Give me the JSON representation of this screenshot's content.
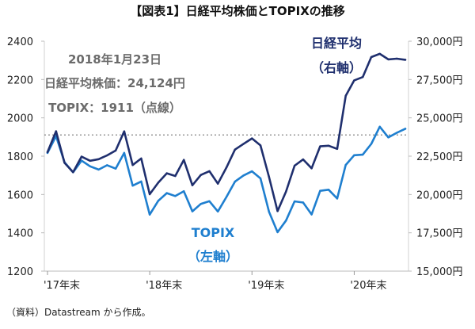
{
  "title": "【図表1】日経平均株価とTOPIXの推移",
  "source": "（資料）Datastream から作成。",
  "annotation": {
    "line1": "2018年1月23日",
    "line2": "日経平均株価：24,124円",
    "line3": "TOPIX：1911（点線）"
  },
  "series_labels": {
    "nikkei_line1": "日経平均",
    "nikkei_line2": "（右軸）",
    "topix_line1": "TOPIX",
    "topix_line2": "（左軸）"
  },
  "colors": {
    "nikkei": "#1f2f6e",
    "topix": "#1f7fcf",
    "reference_line": "#777777"
  },
  "chart_data": {
    "type": "line",
    "title": "【図表1】日経平均株価とTOPIXの推移",
    "xlabel": "",
    "ylabel": "",
    "x": [
      "2017-12",
      "2018-01",
      "2018-02",
      "2018-03",
      "2018-04",
      "2018-05",
      "2018-06",
      "2018-07",
      "2018-08",
      "2018-09",
      "2018-10",
      "2018-11",
      "2018-12",
      "2019-01",
      "2019-02",
      "2019-03",
      "2019-04",
      "2019-05",
      "2019-06",
      "2019-07",
      "2019-08",
      "2019-09",
      "2019-10",
      "2019-11",
      "2019-12",
      "2020-01",
      "2020-02",
      "2020-03",
      "2020-04",
      "2020-05",
      "2020-06",
      "2020-07",
      "2020-08",
      "2020-09",
      "2020-10",
      "2020-11",
      "2020-12",
      "2021-01",
      "2021-02",
      "2021-03",
      "2021-04",
      "2021-05",
      "2021-06"
    ],
    "x_tick_labels": [
      "'17年末",
      "'18年末",
      "'19年末",
      "'20年末"
    ],
    "x_tick_positions": [
      "2017-12",
      "2018-12",
      "2019-12",
      "2020-12"
    ],
    "left_axis": {
      "label": "TOPIX",
      "ylim": [
        1200,
        2400
      ],
      "ticks": [
        1200,
        1400,
        1600,
        1800,
        2000,
        2200,
        2400
      ]
    },
    "right_axis": {
      "label": "日経平均",
      "ylim": [
        15000,
        30000
      ],
      "ticks": [
        15000,
        17500,
        20000,
        22500,
        25000,
        27500,
        30000
      ],
      "tick_labels": [
        "15,000円",
        "17,500円",
        "20,000円",
        "22,500円",
        "25,000円",
        "27,500円",
        "30,000円"
      ]
    },
    "series": [
      {
        "name": "TOPIX",
        "axis": "left",
        "values": [
          1817,
          1905,
          1768,
          1716,
          1777,
          1747,
          1730,
          1753,
          1735,
          1817,
          1646,
          1668,
          1495,
          1567,
          1607,
          1592,
          1617,
          1512,
          1551,
          1565,
          1511,
          1587,
          1667,
          1699,
          1721,
          1684,
          1510,
          1403,
          1464,
          1564,
          1558,
          1496,
          1619,
          1625,
          1579,
          1754,
          1805,
          1808,
          1864,
          1954,
          1898,
          1922,
          1943
        ]
      },
      {
        "name": "日経平均",
        "axis": "right",
        "values": [
          22765,
          24124,
          22068,
          21454,
          22468,
          22202,
          22305,
          22554,
          22865,
          24120,
          21920,
          22351,
          20015,
          20773,
          21385,
          21206,
          22259,
          20601,
          21276,
          21522,
          20704,
          21756,
          22927,
          23294,
          23657,
          23205,
          21143,
          18917,
          20194,
          21878,
          22288,
          21710,
          23140,
          23185,
          22977,
          26434,
          27444,
          27663,
          28966,
          29179,
          28813,
          28860,
          28791
        ]
      }
    ],
    "reference_line": {
      "axis": "left",
      "value": 1911,
      "style": "dotted"
    },
    "grid": false,
    "legend": "none"
  }
}
